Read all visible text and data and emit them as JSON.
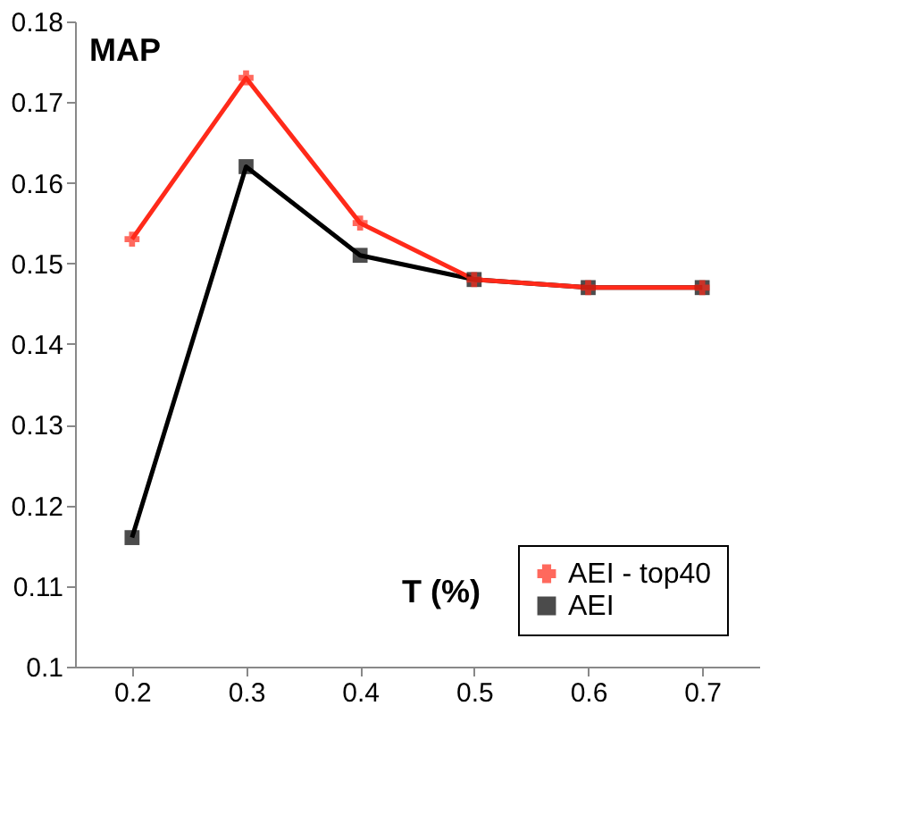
{
  "chart_data": {
    "type": "line",
    "xlabel": "T (%)",
    "ylabel": "MAP",
    "categories": [
      "0.2",
      "0.3",
      "0.4",
      "0.5",
      "0.6",
      "0.7"
    ],
    "series": [
      {
        "name": "AEI - top40",
        "color": "#ff2a1a",
        "marker": "cross",
        "values": [
          0.153,
          0.173,
          0.155,
          0.148,
          0.147,
          0.147
        ]
      },
      {
        "name": "AEI",
        "color": "#000000",
        "marker": "square",
        "values": [
          0.116,
          0.162,
          0.151,
          0.148,
          0.147,
          0.147
        ]
      }
    ],
    "ylim": [
      0.1,
      0.18
    ],
    "yticks": [
      0.1,
      0.11,
      0.12,
      0.13,
      0.14,
      0.15,
      0.16,
      0.17,
      0.18
    ],
    "grid": false,
    "legend": "bottom right",
    "line_style": "solid"
  }
}
